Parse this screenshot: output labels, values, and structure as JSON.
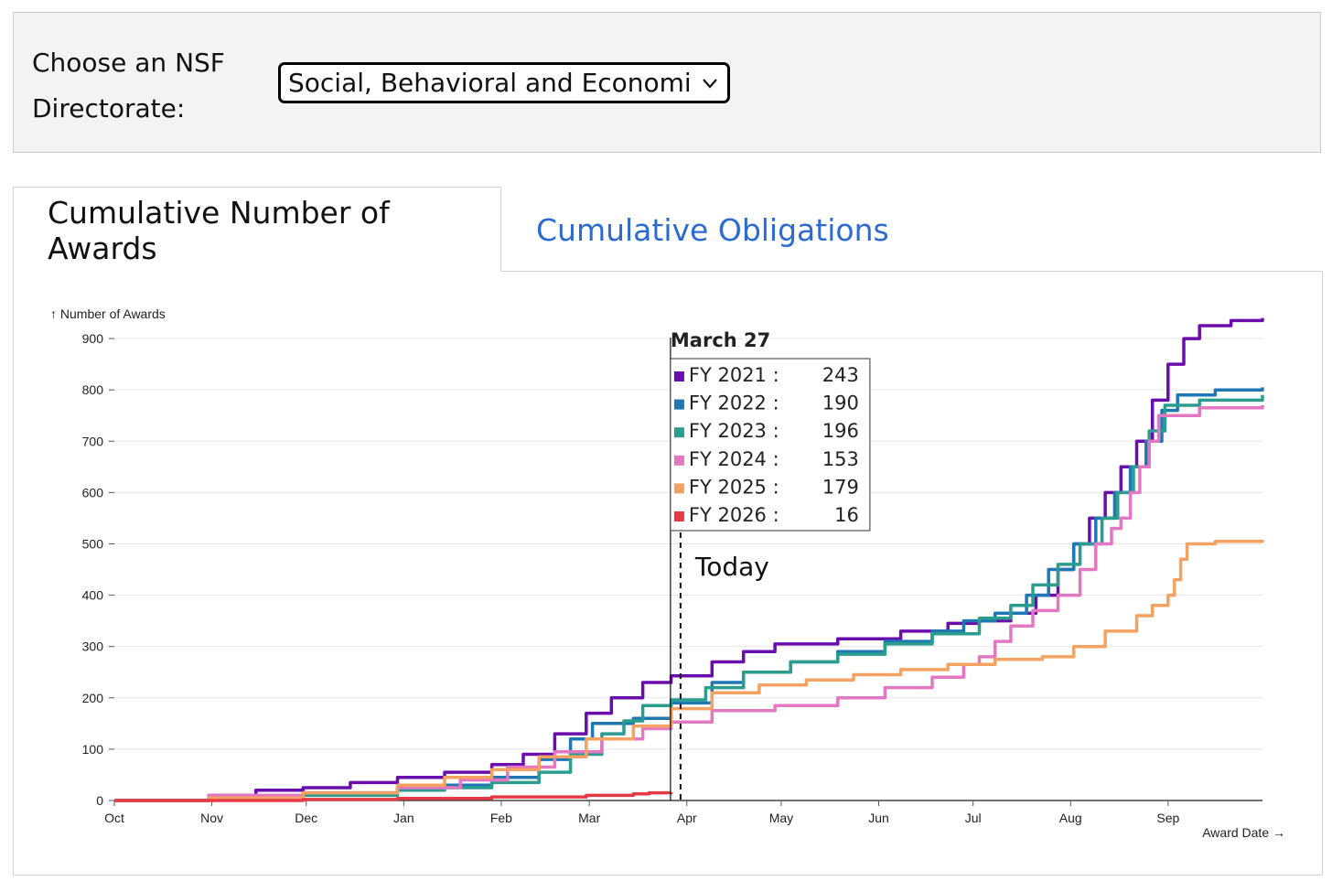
{
  "selector": {
    "label": "Choose an NSF Directorate:",
    "selected": "Social, Behavioral and Economic Sciences"
  },
  "tabs": [
    {
      "label": "Cumulative Number of Awards",
      "active": true
    },
    {
      "label": "Cumulative Obligations",
      "active": false
    }
  ],
  "colors": {
    "FY 2021": "#6a0dad",
    "FY 2022": "#1f77b4",
    "FY 2023": "#2a9d8f",
    "FY 2024": "#e377c2",
    "FY 2025": "#f4a261",
    "FY 2026": "#e63946"
  },
  "chart_data": {
    "type": "line",
    "y_axis_label": "↑ Number of Awards",
    "x_axis_label": "Award Date →",
    "ylim": [
      0,
      950
    ],
    "y_ticks": [
      0,
      100,
      200,
      300,
      400,
      500,
      600,
      700,
      800,
      900
    ],
    "x_ticks": [
      "Oct",
      "Nov",
      "Dec",
      "Jan",
      "Feb",
      "Mar",
      "Apr",
      "May",
      "Jun",
      "Jul",
      "Aug",
      "Sep"
    ],
    "x_unit": "days since Oct 1",
    "x_range": [
      0,
      365
    ],
    "series": [
      {
        "name": "FY 2021",
        "points": [
          [
            0,
            0
          ],
          [
            30,
            10
          ],
          [
            45,
            20
          ],
          [
            60,
            25
          ],
          [
            75,
            35
          ],
          [
            90,
            45
          ],
          [
            105,
            55
          ],
          [
            120,
            70
          ],
          [
            130,
            90
          ],
          [
            140,
            130
          ],
          [
            150,
            170
          ],
          [
            158,
            200
          ],
          [
            168,
            230
          ],
          [
            177,
            243
          ],
          [
            190,
            270
          ],
          [
            200,
            290
          ],
          [
            210,
            305
          ],
          [
            230,
            315
          ],
          [
            250,
            330
          ],
          [
            265,
            345
          ],
          [
            275,
            350
          ],
          [
            285,
            365
          ],
          [
            293,
            400
          ],
          [
            300,
            450
          ],
          [
            305,
            500
          ],
          [
            310,
            550
          ],
          [
            315,
            600
          ],
          [
            320,
            650
          ],
          [
            325,
            700
          ],
          [
            330,
            780
          ],
          [
            335,
            850
          ],
          [
            340,
            900
          ],
          [
            345,
            925
          ],
          [
            355,
            935
          ],
          [
            365,
            940
          ]
        ]
      },
      {
        "name": "FY 2022",
        "points": [
          [
            0,
            0
          ],
          [
            30,
            5
          ],
          [
            60,
            15
          ],
          [
            90,
            25
          ],
          [
            105,
            30
          ],
          [
            120,
            45
          ],
          [
            135,
            80
          ],
          [
            145,
            120
          ],
          [
            152,
            150
          ],
          [
            165,
            160
          ],
          [
            177,
            190
          ],
          [
            190,
            230
          ],
          [
            200,
            250
          ],
          [
            215,
            270
          ],
          [
            230,
            290
          ],
          [
            245,
            310
          ],
          [
            260,
            330
          ],
          [
            270,
            350
          ],
          [
            280,
            365
          ],
          [
            290,
            400
          ],
          [
            297,
            450
          ],
          [
            305,
            500
          ],
          [
            312,
            550
          ],
          [
            318,
            600
          ],
          [
            323,
            650
          ],
          [
            328,
            700
          ],
          [
            333,
            760
          ],
          [
            338,
            790
          ],
          [
            350,
            800
          ],
          [
            365,
            805
          ]
        ]
      },
      {
        "name": "FY 2023",
        "points": [
          [
            0,
            0
          ],
          [
            30,
            5
          ],
          [
            60,
            10
          ],
          [
            90,
            20
          ],
          [
            105,
            25
          ],
          [
            120,
            35
          ],
          [
            135,
            55
          ],
          [
            145,
            90
          ],
          [
            155,
            130
          ],
          [
            162,
            155
          ],
          [
            168,
            185
          ],
          [
            177,
            196
          ],
          [
            188,
            220
          ],
          [
            200,
            250
          ],
          [
            215,
            270
          ],
          [
            230,
            285
          ],
          [
            245,
            305
          ],
          [
            260,
            325
          ],
          [
            275,
            355
          ],
          [
            285,
            380
          ],
          [
            292,
            420
          ],
          [
            300,
            460
          ],
          [
            307,
            500
          ],
          [
            314,
            550
          ],
          [
            319,
            600
          ],
          [
            324,
            650
          ],
          [
            329,
            720
          ],
          [
            334,
            770
          ],
          [
            345,
            780
          ],
          [
            365,
            790
          ]
        ]
      },
      {
        "name": "FY 2024",
        "points": [
          [
            0,
            0
          ],
          [
            30,
            10
          ],
          [
            60,
            15
          ],
          [
            90,
            25
          ],
          [
            110,
            40
          ],
          [
            125,
            65
          ],
          [
            140,
            95
          ],
          [
            155,
            120
          ],
          [
            168,
            140
          ],
          [
            177,
            153
          ],
          [
            190,
            175
          ],
          [
            210,
            185
          ],
          [
            230,
            200
          ],
          [
            245,
            220
          ],
          [
            260,
            240
          ],
          [
            270,
            265
          ],
          [
            275,
            280
          ],
          [
            280,
            310
          ],
          [
            285,
            340
          ],
          [
            292,
            370
          ],
          [
            300,
            400
          ],
          [
            307,
            450
          ],
          [
            312,
            500
          ],
          [
            317,
            530
          ],
          [
            320,
            550
          ],
          [
            323,
            600
          ],
          [
            326,
            650
          ],
          [
            329,
            700
          ],
          [
            332,
            750
          ],
          [
            345,
            765
          ],
          [
            365,
            770
          ]
        ]
      },
      {
        "name": "FY 2025",
        "points": [
          [
            0,
            0
          ],
          [
            30,
            5
          ],
          [
            60,
            15
          ],
          [
            90,
            30
          ],
          [
            105,
            45
          ],
          [
            120,
            60
          ],
          [
            135,
            85
          ],
          [
            150,
            120
          ],
          [
            165,
            145
          ],
          [
            177,
            179
          ],
          [
            190,
            210
          ],
          [
            205,
            225
          ],
          [
            220,
            235
          ],
          [
            235,
            245
          ],
          [
            250,
            255
          ],
          [
            265,
            265
          ],
          [
            280,
            275
          ],
          [
            295,
            280
          ],
          [
            305,
            300
          ],
          [
            315,
            330
          ],
          [
            325,
            360
          ],
          [
            330,
            380
          ],
          [
            335,
            400
          ],
          [
            337,
            430
          ],
          [
            339,
            470
          ],
          [
            341,
            500
          ],
          [
            350,
            505
          ],
          [
            365,
            508
          ]
        ]
      },
      {
        "name": "FY 2026",
        "points": [
          [
            0,
            0
          ],
          [
            60,
            2
          ],
          [
            90,
            4
          ],
          [
            120,
            7
          ],
          [
            150,
            10
          ],
          [
            165,
            13
          ],
          [
            170,
            15
          ],
          [
            177,
            16
          ]
        ]
      }
    ],
    "today_day": 180,
    "tooltip": {
      "title": "March 27",
      "rows": [
        {
          "name": "FY 2021 :",
          "value": "243"
        },
        {
          "name": "FY 2022 :",
          "value": "190"
        },
        {
          "name": "FY 2023 :",
          "value": "196"
        },
        {
          "name": "FY 2024 :",
          "value": "153"
        },
        {
          "name": "FY 2025 :",
          "value": "179"
        },
        {
          "name": "FY 2026 :",
          "value": "16"
        }
      ]
    },
    "today_label": "Today"
  }
}
